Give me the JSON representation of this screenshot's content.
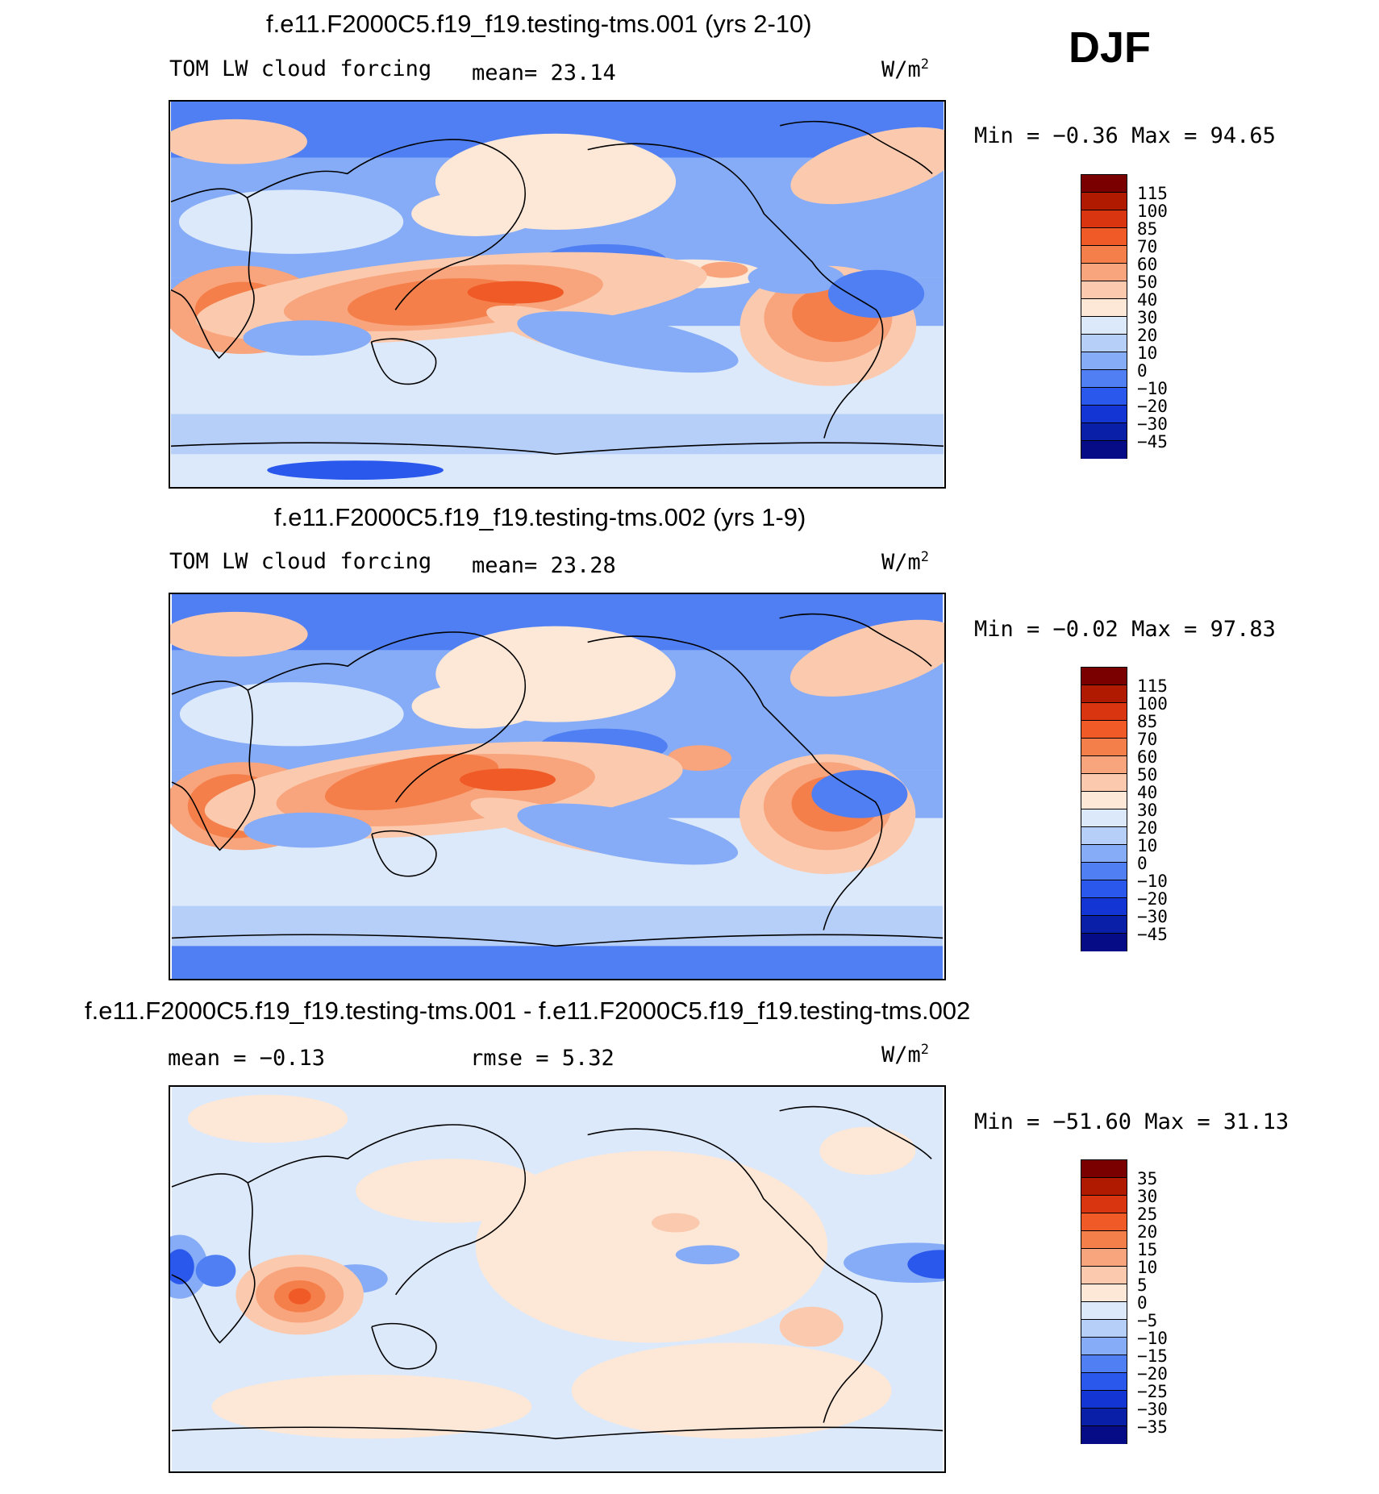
{
  "season": "DJF",
  "panels": [
    {
      "title": "f.e11.F2000C5.f19_f19.testing-tms.001 (yrs 2-10)",
      "left_label": "TOM LW cloud forcing",
      "mid_label": "mean=  23.14",
      "units": "W/m",
      "units_sup": "2",
      "minmax": "Min =  −0.36 Max =  94.65"
    },
    {
      "title": "f.e11.F2000C5.f19_f19.testing-tms.002 (yrs 1-9)",
      "left_label": "TOM LW cloud forcing",
      "mid_label": "mean=  23.28",
      "units": "W/m",
      "units_sup": "2",
      "minmax": "Min =  −0.02 Max =  97.83"
    },
    {
      "title": "f.e11.F2000C5.f19_f19.testing-tms.001 - f.e11.F2000C5.f19_f19.testing-tms.002",
      "left_label": "mean =  −0.13",
      "mid_label": "rmse =   5.32",
      "units": "W/m",
      "units_sup": "2",
      "minmax": "Min = −51.60 Max =  31.13"
    }
  ],
  "chart_data": [
    {
      "type": "heatmap",
      "title": "f.e11.F2000C5.f19_f19.testing-tms.001 (yrs 2-10)",
      "variable": "TOM LW cloud forcing",
      "units": "W/m^2",
      "mean": 23.14,
      "min": -0.36,
      "max": 94.65,
      "levels": [
        "115",
        "100",
        "85",
        "70",
        "60",
        "50",
        "40",
        "30",
        "20",
        "10",
        "0",
        "−10",
        "−20",
        "−30",
        "−45"
      ],
      "colors": [
        "#7a0000",
        "#b01a00",
        "#d83510",
        "#f05a26",
        "#f57f4a",
        "#f8a47c",
        "#fbcaae",
        "#fde7d6",
        "#dce9fb",
        "#b6cff9",
        "#86acf7",
        "#4f7ff3",
        "#2a57ec",
        "#1235d4",
        "#0a1fa8",
        "#050c86"
      ]
    },
    {
      "type": "heatmap",
      "title": "f.e11.F2000C5.f19_f19.testing-tms.002 (yrs 1-9)",
      "variable": "TOM LW cloud forcing",
      "units": "W/m^2",
      "mean": 23.28,
      "min": -0.02,
      "max": 97.83,
      "levels": [
        "115",
        "100",
        "85",
        "70",
        "60",
        "50",
        "40",
        "30",
        "20",
        "10",
        "0",
        "−10",
        "−20",
        "−30",
        "−45"
      ],
      "colors": [
        "#7a0000",
        "#b01a00",
        "#d83510",
        "#f05a26",
        "#f57f4a",
        "#f8a47c",
        "#fbcaae",
        "#fde7d6",
        "#dce9fb",
        "#b6cff9",
        "#86acf7",
        "#4f7ff3",
        "#2a57ec",
        "#1235d4",
        "#0a1fa8",
        "#050c86"
      ]
    },
    {
      "type": "heatmap",
      "title": "f.e11.F2000C5.f19_f19.testing-tms.001 - f.e11.F2000C5.f19_f19.testing-tms.002",
      "units": "W/m^2",
      "mean": -0.13,
      "rmse": 5.32,
      "min": -51.6,
      "max": 31.13,
      "levels": [
        "35",
        "30",
        "25",
        "20",
        "15",
        "10",
        "5",
        "0",
        "−5",
        "−10",
        "−15",
        "−20",
        "−25",
        "−30",
        "−35"
      ],
      "colors": [
        "#7a0000",
        "#b01a00",
        "#d83510",
        "#f05a26",
        "#f57f4a",
        "#f8a47c",
        "#fbcaae",
        "#fde7d6",
        "#dce9fb",
        "#b6cff9",
        "#86acf7",
        "#4f7ff3",
        "#2a57ec",
        "#1235d4",
        "#0a1fa8",
        "#050c86"
      ]
    }
  ]
}
